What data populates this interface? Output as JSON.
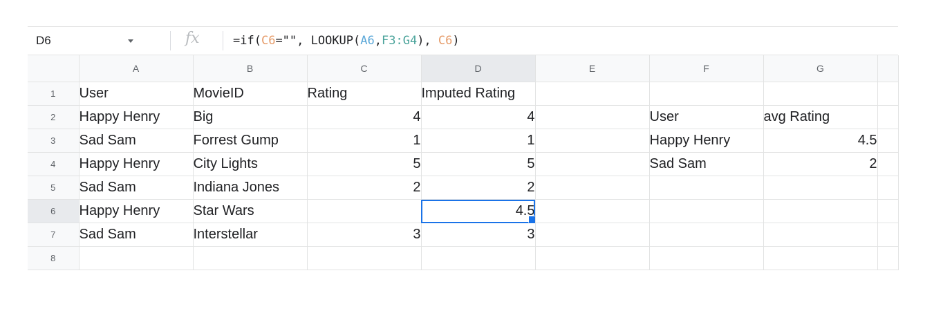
{
  "name_box": {
    "value": "D6"
  },
  "formula_bar": {
    "fx_label": "fx",
    "formula_parts": [
      {
        "text": "=if(",
        "color": ""
      },
      {
        "text": "C6",
        "color": "#e69c6a"
      },
      {
        "text": "=\"\", LOOKUP(",
        "color": ""
      },
      {
        "text": "A6",
        "color": "#5aa7d8"
      },
      {
        "text": ",",
        "color": ""
      },
      {
        "text": "F3:G4",
        "color": "#4aa39a"
      },
      {
        "text": "), ",
        "color": ""
      },
      {
        "text": "C6",
        "color": "#e69c6a"
      },
      {
        "text": ")",
        "color": ""
      }
    ]
  },
  "selection": {
    "cell": "D6",
    "color": "#1a73e8"
  },
  "columns": [
    "A",
    "B",
    "C",
    "D",
    "E",
    "F",
    "G"
  ],
  "rows": [
    {
      "n": "1",
      "cells": [
        "User",
        "MovieID",
        "Rating",
        "Imputed Rating",
        "",
        "",
        ""
      ]
    },
    {
      "n": "2",
      "cells": [
        "Happy Henry",
        "Big",
        "4",
        "4",
        "",
        "User",
        "avg Rating"
      ]
    },
    {
      "n": "3",
      "cells": [
        "Sad Sam",
        "Forrest Gump",
        "1",
        "1",
        "",
        "Happy Henry",
        "4.5"
      ]
    },
    {
      "n": "4",
      "cells": [
        "Happy Henry",
        "City Lights",
        "5",
        "5",
        "",
        "Sad Sam",
        "2"
      ]
    },
    {
      "n": "5",
      "cells": [
        "Sad Sam",
        "Indiana Jones",
        "2",
        "2",
        "",
        "",
        ""
      ]
    },
    {
      "n": "6",
      "cells": [
        "Happy Henry",
        "Star Wars",
        "",
        "4.5",
        "",
        "",
        ""
      ]
    },
    {
      "n": "7",
      "cells": [
        "Sad Sam",
        "Interstellar",
        "3",
        "3",
        "",
        "",
        ""
      ]
    },
    {
      "n": "8",
      "cells": [
        "",
        "",
        "",
        "",
        "",
        "",
        ""
      ]
    }
  ]
}
